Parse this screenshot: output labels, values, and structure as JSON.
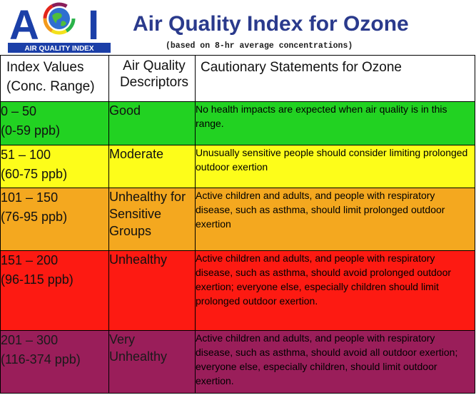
{
  "logo": {
    "wordmark": "AQI",
    "tagline": "AIR QUALITY INDEX"
  },
  "title": "Air Quality Index for Ozone",
  "subtitle": "(based on 8-hr average concentrations)",
  "table": {
    "headers": {
      "index_line1": "Index Values",
      "index_line2": "(Conc. Range)",
      "descriptor_line1": "Air Quality",
      "descriptor_line2": "Descriptors",
      "statement": "Cautionary Statements for Ozone"
    },
    "rows": [
      {
        "range": "0 – 50",
        "conc": "(0-59 ppb)",
        "descriptor": "Good",
        "statement": "No health impacts are expected when air quality is in this range.",
        "color": "#22d222"
      },
      {
        "range": "51 – 100",
        "conc": "(60-75 ppb)",
        "descriptor": "Moderate",
        "statement": "Unusually sensitive people should consider limiting prolonged outdoor exertion",
        "color": "#fdfd1a"
      },
      {
        "range": "101 – 150",
        "conc": "(76-95 ppb)",
        "descriptor": "Unhealthy for Sensitive Groups",
        "statement": "Active children and adults, and people with respiratory disease, such as asthma, should limit prolonged outdoor exertion",
        "color": "#f4a81f"
      },
      {
        "range": "151 – 200",
        "conc": "(96-115 ppb)",
        "descriptor": "Unhealthy",
        "statement": "Active children and adults, and people with respiratory disease, such as asthma, should avoid prolonged outdoor exertion; everyone else, especially children should limit prolonged outdoor exertion.",
        "color": "#fd1a12"
      },
      {
        "range": "201 – 300",
        "conc": "(116-374 ppb)",
        "descriptor": "Very Unhealthy",
        "statement": "Active children and adults, and people with respiratory disease, such as asthma, should avoid all outdoor exertion; everyone else, especially children, should limit outdoor exertion.",
        "color": "#9a1e5a"
      }
    ]
  }
}
